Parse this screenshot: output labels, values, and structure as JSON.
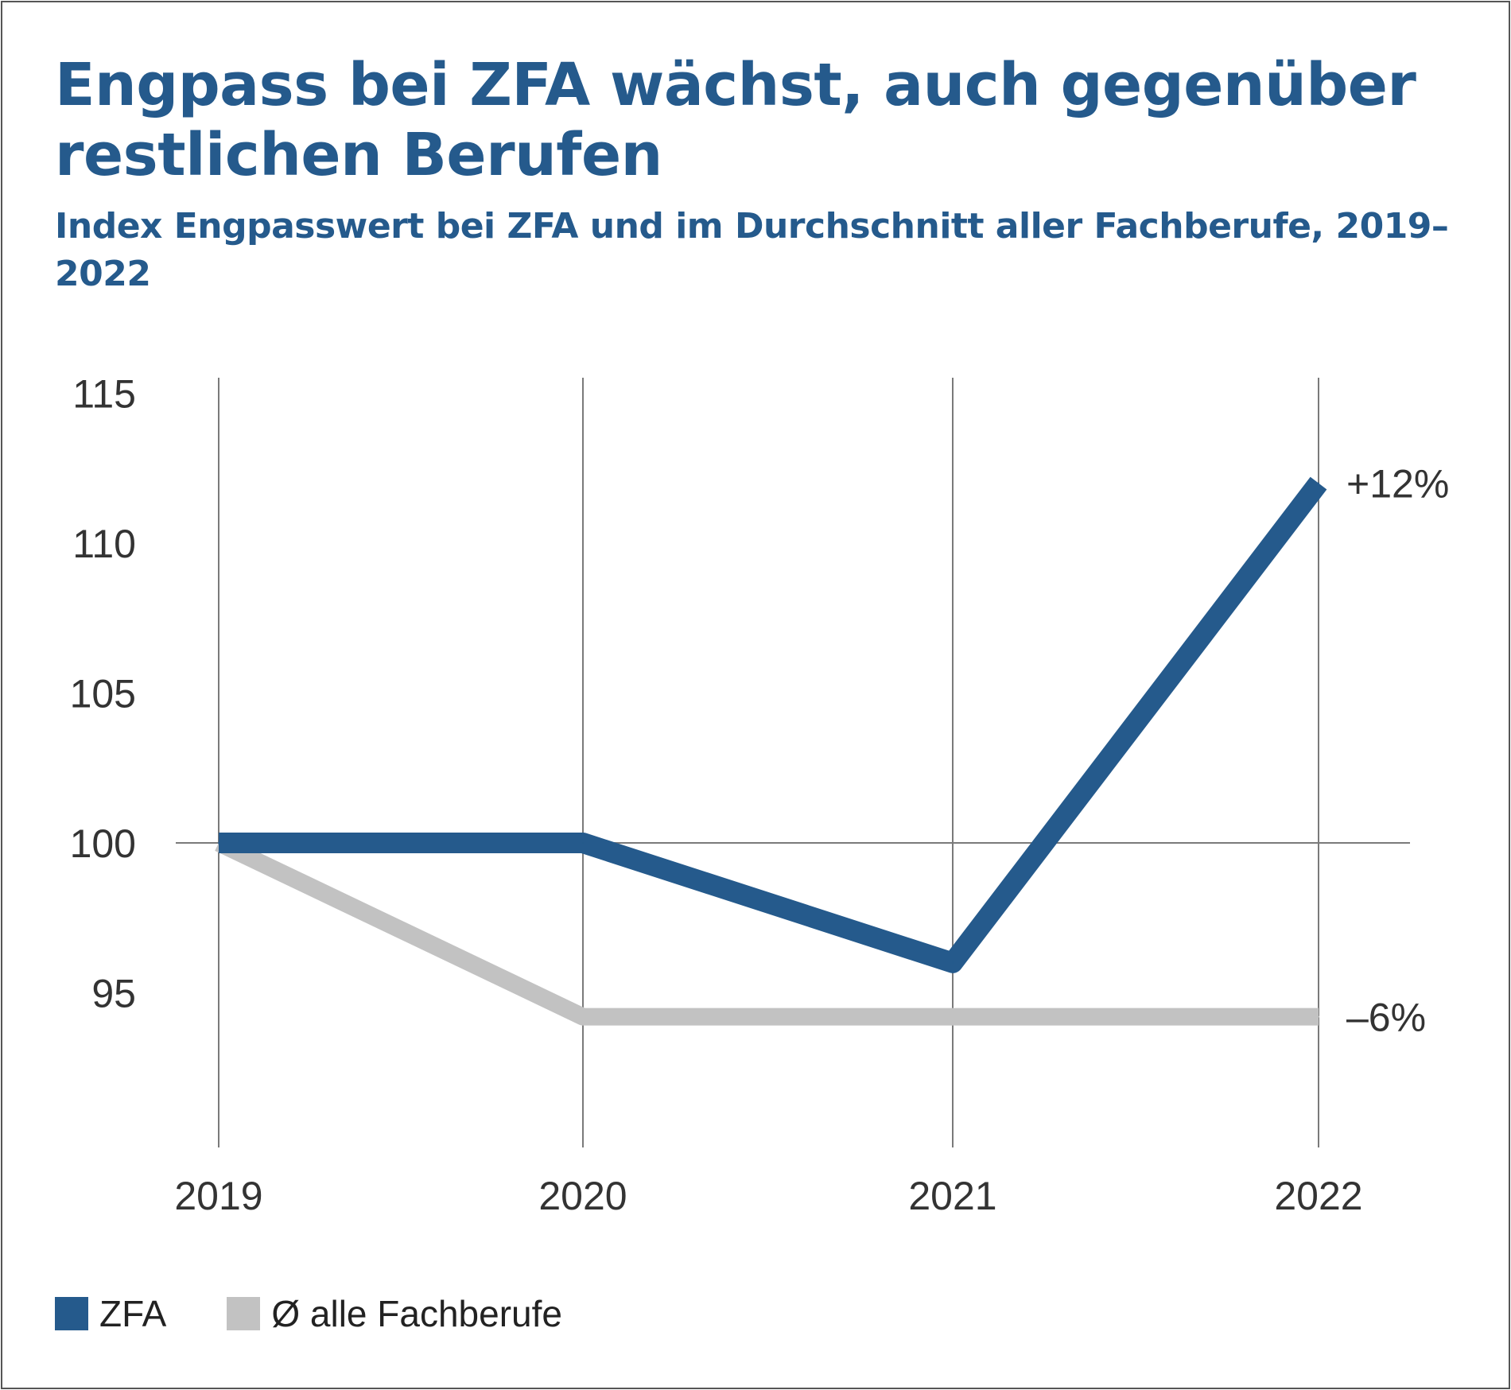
{
  "colors": {
    "zfa": "#255a8c",
    "avg": "#c2c2c2",
    "grid": "#7a7a7a",
    "title": "#255a8c"
  },
  "chart_data": {
    "type": "line",
    "title": "Engpass bei ZFA wächst, auch gegenüber restlichen Berufen",
    "subtitle": "Index Engpasswert bei ZFA und im Durchschnitt aller Fachberufe, 2019–2022",
    "x": [
      "2019",
      "2020",
      "2021",
      "2022"
    ],
    "ylim": [
      90,
      115
    ],
    "yticks": [
      "95",
      "100",
      "105",
      "110",
      "115"
    ],
    "ytick_values": [
      95,
      100,
      105,
      110,
      115
    ],
    "reference_line": 100,
    "series": [
      {
        "name": "ZFA",
        "values": [
          100,
          100,
          96,
          112
        ],
        "end_label": "+12%",
        "color": "#255a8c"
      },
      {
        "name": "Ø alle Fachberufe",
        "values": [
          100,
          94.2,
          94.2,
          94.2
        ],
        "end_label": "–6%",
        "color": "#c2c2c2"
      }
    ],
    "legend": [
      "ZFA",
      "Ø alle Fachberufe"
    ]
  }
}
